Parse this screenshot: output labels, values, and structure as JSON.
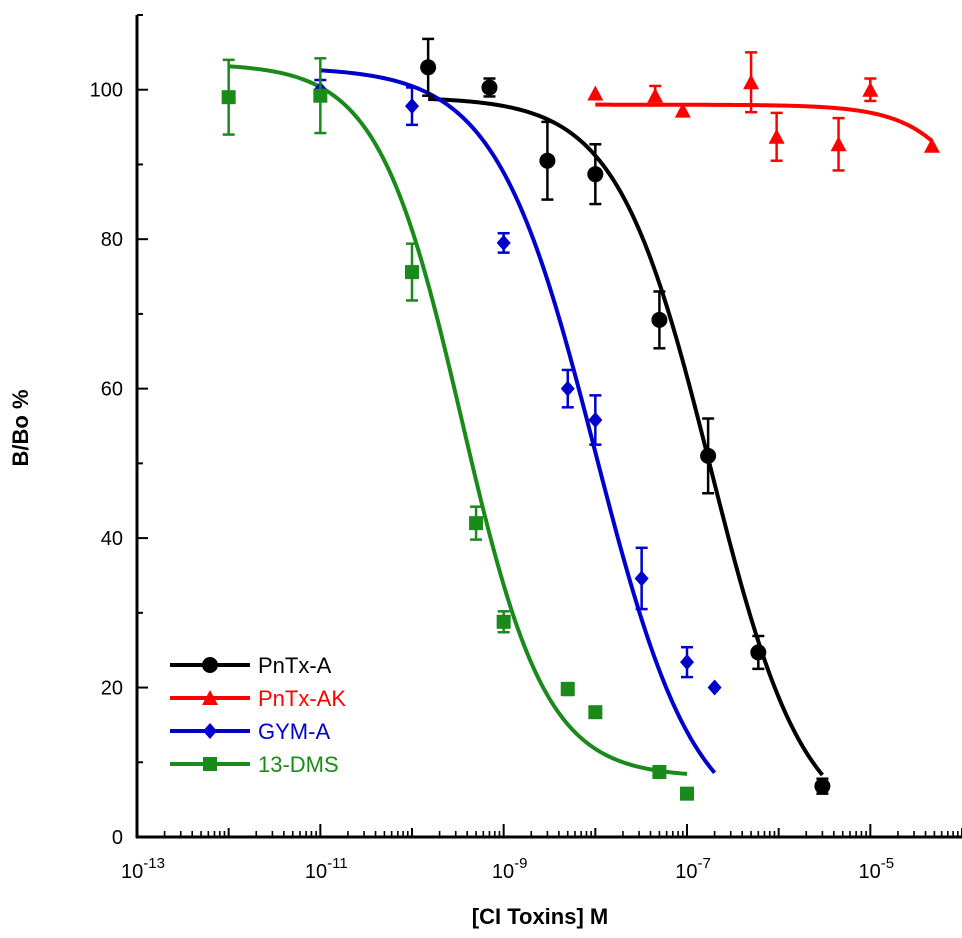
{
  "chart_data": {
    "type": "scatter",
    "title": "",
    "xlabel": "[CI Toxins]  M",
    "ylabel": "B/Bo %",
    "xscale": "log",
    "xlim": [
      1e-13,
      0.0001
    ],
    "ylim": [
      0,
      110
    ],
    "x_ticks": [
      {
        "value": 1e-13,
        "base": "10",
        "exp": "-13"
      },
      {
        "value": 1e-11,
        "base": "10",
        "exp": "-11"
      },
      {
        "value": 1e-09,
        "base": "10",
        "exp": "-9"
      },
      {
        "value": 1e-07,
        "base": "10",
        "exp": "-7"
      },
      {
        "value": 1e-05,
        "base": "10",
        "exp": "-5"
      }
    ],
    "y_ticks": [
      {
        "value": 0,
        "label": "0"
      },
      {
        "value": 20,
        "label": "20"
      },
      {
        "value": 40,
        "label": "40"
      },
      {
        "value": 60,
        "label": "60"
      },
      {
        "value": 80,
        "label": "80"
      },
      {
        "value": 100,
        "label": "100"
      }
    ],
    "grid": false,
    "legend_position": "bottom-left",
    "series": [
      {
        "name": "PnTx-A",
        "color": "#000000",
        "marker": "circle",
        "points": [
          {
            "x": 1.5e-10,
            "y": 103,
            "err": 3.8
          },
          {
            "x": 7e-10,
            "y": 100.3,
            "err": 1.2
          },
          {
            "x": 3e-09,
            "y": 90.5,
            "err": 5.2
          },
          {
            "x": 1e-08,
            "y": 88.7,
            "err": 4.0
          },
          {
            "x": 5e-08,
            "y": 69.2,
            "err": 3.8
          },
          {
            "x": 1.7e-07,
            "y": 51,
            "err": 5.0
          },
          {
            "x": 6e-07,
            "y": 24.7,
            "err": 2.2
          },
          {
            "x": 3e-06,
            "y": 6.8,
            "err": 1.0
          }
        ],
        "fit": {
          "top": 99,
          "bottom": 0,
          "ic50": 1.8e-07,
          "hill": 0.85,
          "xmin": 1.5e-10,
          "xmax": 3e-06
        }
      },
      {
        "name": "PnTx-AK",
        "color": "#ff0000",
        "marker": "triangle",
        "points": [
          {
            "x": 1e-08,
            "y": 99.5,
            "err": 0
          },
          {
            "x": 4.5e-08,
            "y": 99.2,
            "err": 1.3
          },
          {
            "x": 9e-08,
            "y": 97.2,
            "err": 0
          },
          {
            "x": 5e-07,
            "y": 101,
            "err": 4.0
          },
          {
            "x": 9.5e-07,
            "y": 93.7,
            "err": 3.2
          },
          {
            "x": 4.5e-06,
            "y": 92.7,
            "err": 3.5
          },
          {
            "x": 1e-05,
            "y": 100,
            "err": 1.5
          },
          {
            "x": 4.7e-05,
            "y": 92.5,
            "err": 0
          }
        ],
        "fit": {
          "top": 98,
          "bottom": 0,
          "ic50": 0.0009,
          "hill": 1.0,
          "xmin": 1e-08,
          "xmax": 4.7e-05
        }
      },
      {
        "name": "GYM-A",
        "color": "#0000cc",
        "marker": "diamond",
        "points": [
          {
            "x": 1e-11,
            "y": 100,
            "err": 1.3
          },
          {
            "x": 1e-10,
            "y": 97.8,
            "err": 2.5
          },
          {
            "x": 1e-09,
            "y": 79.5,
            "err": 1.3
          },
          {
            "x": 5e-09,
            "y": 60,
            "err": 2.5
          },
          {
            "x": 1e-08,
            "y": 55.8,
            "err": 3.3
          },
          {
            "x": 3.2e-08,
            "y": 34.6,
            "err": 4.1
          },
          {
            "x": 1e-07,
            "y": 23.4,
            "err": 2.0
          },
          {
            "x": 2e-07,
            "y": 20,
            "err": 0
          }
        ],
        "fit": {
          "top": 103,
          "bottom": 0,
          "ic50": 1e-08,
          "hill": 0.8,
          "xmin": 1e-11,
          "xmax": 2e-07
        }
      },
      {
        "name": "13-DMS",
        "color": "#1a8a1a",
        "marker": "square",
        "points": [
          {
            "x": 1e-12,
            "y": 99,
            "err": 5
          },
          {
            "x": 1e-11,
            "y": 99.2,
            "err": 5
          },
          {
            "x": 1e-10,
            "y": 75.6,
            "err": 3.8
          },
          {
            "x": 5e-10,
            "y": 42,
            "err": 2.2
          },
          {
            "x": 1e-09,
            "y": 28.8,
            "err": 1.4
          },
          {
            "x": 5e-09,
            "y": 19.8,
            "err": 0.8
          },
          {
            "x": 1e-08,
            "y": 16.7,
            "err": 0
          },
          {
            "x": 5e-08,
            "y": 8.7,
            "err": 0
          },
          {
            "x": 1e-07,
            "y": 5.8,
            "err": 0
          }
        ],
        "fit": {
          "top": 103.5,
          "bottom": 8,
          "ic50": 3.5e-10,
          "hill": 0.95,
          "xmin": 1e-12,
          "xmax": 1e-07
        }
      }
    ]
  }
}
